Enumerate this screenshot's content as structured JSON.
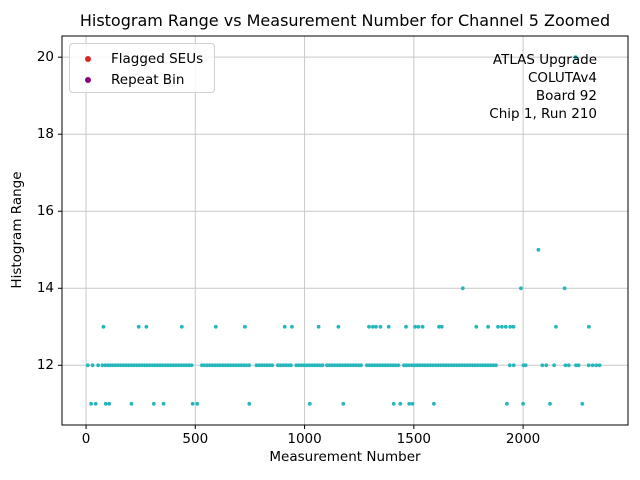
{
  "chart_data": {
    "type": "scatter",
    "title": "Histogram Range vs Measurement Number for Channel 5 Zoomed",
    "xlabel": "Measurement Number",
    "ylabel": "Histogram Range",
    "xlim": [
      -110,
      2480
    ],
    "ylim": [
      10.45,
      20.55
    ],
    "xticks": [
      0,
      500,
      1000,
      1500,
      2000
    ],
    "xtick_labels": [
      "0",
      "500",
      "1000",
      "1500",
      "2000"
    ],
    "yticks": [
      12,
      14,
      16,
      18,
      20
    ],
    "ytick_labels": [
      "12",
      "14",
      "16",
      "18",
      "20"
    ],
    "grid": true,
    "grid_color": "#c9c9c9",
    "point_color": "#26b7bd",
    "legend_position": "upper left",
    "legend": {
      "items": [
        {
          "label": "Flagged SEUs",
          "color": "#d62728"
        },
        {
          "label": "Repeat Bin",
          "color": "#800080"
        }
      ]
    },
    "annotation": {
      "lines": [
        "ATLAS Upgrade",
        "COLUTAv4",
        "Board 92",
        "Chip 1, Run 210"
      ]
    },
    "series": [
      {
        "name": "Histogram Range measurements",
        "color": "#26b7bd",
        "points_by_y": {
          "11": [
            23,
            44,
            90,
            106,
            208,
            310,
            355,
            488,
            509,
            747,
            1024,
            1177,
            1408,
            1438,
            1479,
            1494,
            1592,
            1926,
            2000,
            2123,
            2271
          ],
          "12": [
            8,
            30,
            55,
            75,
            87,
            99,
            111,
            123,
            135,
            147,
            159,
            171,
            183,
            195,
            207,
            219,
            231,
            243,
            255,
            267,
            279,
            291,
            303,
            315,
            327,
            339,
            351,
            363,
            375,
            387,
            399,
            411,
            423,
            435,
            447,
            459,
            471,
            483,
            530,
            542,
            554,
            566,
            578,
            590,
            602,
            614,
            626,
            638,
            650,
            662,
            674,
            686,
            698,
            710,
            722,
            734,
            746,
            780,
            792,
            804,
            816,
            828,
            840,
            852,
            878,
            890,
            902,
            914,
            926,
            938,
            962,
            974,
            986,
            998,
            1010,
            1022,
            1034,
            1046,
            1058,
            1070,
            1082,
            1102,
            1114,
            1126,
            1138,
            1150,
            1162,
            1174,
            1186,
            1198,
            1210,
            1222,
            1234,
            1246,
            1258,
            1285,
            1297,
            1309,
            1321,
            1333,
            1345,
            1357,
            1369,
            1381,
            1393,
            1405,
            1417,
            1429,
            1455,
            1467,
            1479,
            1491,
            1503,
            1515,
            1527,
            1539,
            1551,
            1563,
            1575,
            1587,
            1600,
            1612,
            1624,
            1636,
            1648,
            1660,
            1672,
            1684,
            1696,
            1708,
            1720,
            1732,
            1744,
            1756,
            1768,
            1780,
            1792,
            1804,
            1816,
            1828,
            1840,
            1852,
            1864,
            1876,
            1939,
            1957,
            2002,
            2012,
            2088,
            2106,
            2142,
            2194,
            2209,
            2242,
            2254,
            2300,
            2318,
            2335,
            2350
          ],
          "13": [
            80,
            241,
            276,
            438,
            594,
            727,
            909,
            942,
            1064,
            1155,
            1295,
            1312,
            1327,
            1347,
            1385,
            1464,
            1506,
            1521,
            1540,
            1615,
            1628,
            1786,
            1840,
            1885,
            1903,
            1921,
            1941,
            1956,
            2150,
            2301
          ],
          "14": [
            1724,
            1990,
            2190
          ],
          "15": [
            2070
          ],
          "20": [
            2240
          ]
        }
      }
    ]
  }
}
